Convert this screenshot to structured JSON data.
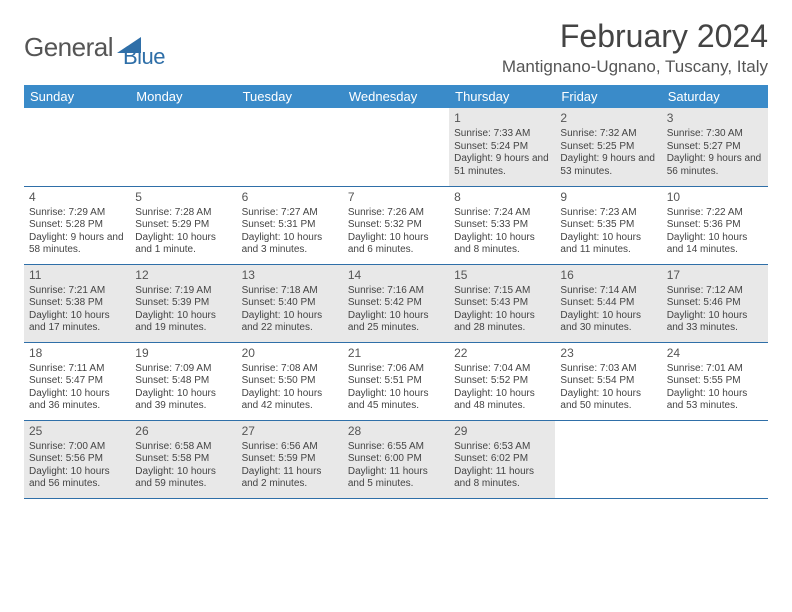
{
  "brand": {
    "name1": "General",
    "name2": "Blue"
  },
  "title": "February 2024",
  "location": "Mantignano-Ugnano, Tuscany, Italy",
  "colors": {
    "header_bg": "#3a8bc9",
    "border": "#2f6fa8",
    "shade": "#e8e8e8"
  },
  "weekdays": [
    "Sunday",
    "Monday",
    "Tuesday",
    "Wednesday",
    "Thursday",
    "Friday",
    "Saturday"
  ],
  "weeks": [
    [
      null,
      null,
      null,
      null,
      {
        "d": "1",
        "sr": "7:33 AM",
        "ss": "5:24 PM",
        "dl": "9 hours and 51 minutes."
      },
      {
        "d": "2",
        "sr": "7:32 AM",
        "ss": "5:25 PM",
        "dl": "9 hours and 53 minutes."
      },
      {
        "d": "3",
        "sr": "7:30 AM",
        "ss": "5:27 PM",
        "dl": "9 hours and 56 minutes."
      }
    ],
    [
      {
        "d": "4",
        "sr": "7:29 AM",
        "ss": "5:28 PM",
        "dl": "9 hours and 58 minutes."
      },
      {
        "d": "5",
        "sr": "7:28 AM",
        "ss": "5:29 PM",
        "dl": "10 hours and 1 minute."
      },
      {
        "d": "6",
        "sr": "7:27 AM",
        "ss": "5:31 PM",
        "dl": "10 hours and 3 minutes."
      },
      {
        "d": "7",
        "sr": "7:26 AM",
        "ss": "5:32 PM",
        "dl": "10 hours and 6 minutes."
      },
      {
        "d": "8",
        "sr": "7:24 AM",
        "ss": "5:33 PM",
        "dl": "10 hours and 8 minutes."
      },
      {
        "d": "9",
        "sr": "7:23 AM",
        "ss": "5:35 PM",
        "dl": "10 hours and 11 minutes."
      },
      {
        "d": "10",
        "sr": "7:22 AM",
        "ss": "5:36 PM",
        "dl": "10 hours and 14 minutes."
      }
    ],
    [
      {
        "d": "11",
        "sr": "7:21 AM",
        "ss": "5:38 PM",
        "dl": "10 hours and 17 minutes."
      },
      {
        "d": "12",
        "sr": "7:19 AM",
        "ss": "5:39 PM",
        "dl": "10 hours and 19 minutes."
      },
      {
        "d": "13",
        "sr": "7:18 AM",
        "ss": "5:40 PM",
        "dl": "10 hours and 22 minutes."
      },
      {
        "d": "14",
        "sr": "7:16 AM",
        "ss": "5:42 PM",
        "dl": "10 hours and 25 minutes."
      },
      {
        "d": "15",
        "sr": "7:15 AM",
        "ss": "5:43 PM",
        "dl": "10 hours and 28 minutes."
      },
      {
        "d": "16",
        "sr": "7:14 AM",
        "ss": "5:44 PM",
        "dl": "10 hours and 30 minutes."
      },
      {
        "d": "17",
        "sr": "7:12 AM",
        "ss": "5:46 PM",
        "dl": "10 hours and 33 minutes."
      }
    ],
    [
      {
        "d": "18",
        "sr": "7:11 AM",
        "ss": "5:47 PM",
        "dl": "10 hours and 36 minutes."
      },
      {
        "d": "19",
        "sr": "7:09 AM",
        "ss": "5:48 PM",
        "dl": "10 hours and 39 minutes."
      },
      {
        "d": "20",
        "sr": "7:08 AM",
        "ss": "5:50 PM",
        "dl": "10 hours and 42 minutes."
      },
      {
        "d": "21",
        "sr": "7:06 AM",
        "ss": "5:51 PM",
        "dl": "10 hours and 45 minutes."
      },
      {
        "d": "22",
        "sr": "7:04 AM",
        "ss": "5:52 PM",
        "dl": "10 hours and 48 minutes."
      },
      {
        "d": "23",
        "sr": "7:03 AM",
        "ss": "5:54 PM",
        "dl": "10 hours and 50 minutes."
      },
      {
        "d": "24",
        "sr": "7:01 AM",
        "ss": "5:55 PM",
        "dl": "10 hours and 53 minutes."
      }
    ],
    [
      {
        "d": "25",
        "sr": "7:00 AM",
        "ss": "5:56 PM",
        "dl": "10 hours and 56 minutes."
      },
      {
        "d": "26",
        "sr": "6:58 AM",
        "ss": "5:58 PM",
        "dl": "10 hours and 59 minutes."
      },
      {
        "d": "27",
        "sr": "6:56 AM",
        "ss": "5:59 PM",
        "dl": "11 hours and 2 minutes."
      },
      {
        "d": "28",
        "sr": "6:55 AM",
        "ss": "6:00 PM",
        "dl": "11 hours and 5 minutes."
      },
      {
        "d": "29",
        "sr": "6:53 AM",
        "ss": "6:02 PM",
        "dl": "11 hours and 8 minutes."
      },
      null,
      null
    ]
  ],
  "labels": {
    "sunrise": "Sunrise: ",
    "sunset": "Sunset: ",
    "daylight": "Daylight: "
  }
}
